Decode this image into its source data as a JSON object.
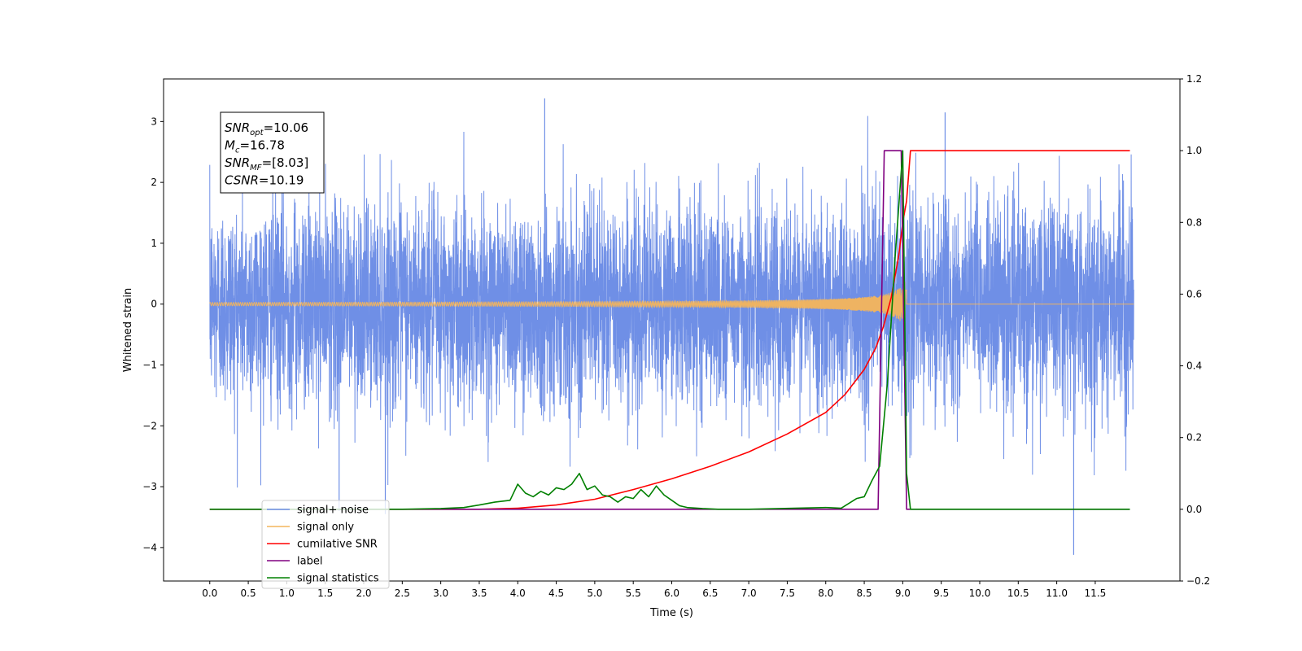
{
  "chart_data": {
    "type": "line",
    "xlabel": "Time (s)",
    "ylabel_left": "Whitened strain",
    "ylabel_right": "",
    "xlim": [
      -0.6,
      12.6
    ],
    "ylim_left": [
      -4.55,
      3.7
    ],
    "ylim_right": [
      -0.2,
      1.2
    ],
    "x_ticks": [
      0.0,
      0.5,
      1.0,
      1.5,
      2.0,
      2.5,
      3.0,
      3.5,
      4.0,
      4.5,
      5.0,
      5.5,
      6.0,
      6.5,
      7.0,
      7.5,
      8.0,
      8.5,
      9.0,
      9.5,
      10.0,
      10.5,
      11.0,
      11.5
    ],
    "x_tick_labels": [
      "0.0",
      "0.5",
      "1.0",
      "1.5",
      "2.0",
      "2.5",
      "3.0",
      "3.5",
      "4.0",
      "4.5",
      "5.0",
      "5.5",
      "6.0",
      "6.5",
      "7.0",
      "7.5",
      "8.0",
      "8.5",
      "9.0",
      "9.5",
      "10.0",
      "10.5",
      "11.0",
      "11.5"
    ],
    "y_ticks_left": [
      -4,
      -3,
      -2,
      -1,
      0,
      1,
      2,
      3
    ],
    "y_tick_labels_left": [
      "−4",
      "−3",
      "−2",
      "−1",
      "0",
      "1",
      "2",
      "3"
    ],
    "y_ticks_right": [
      -0.2,
      0.0,
      0.2,
      0.4,
      0.6,
      0.8,
      1.0,
      1.2
    ],
    "y_tick_labels_right": [
      "−0.2",
      "0.0",
      "0.2",
      "0.4",
      "0.6",
      "0.8",
      "1.0",
      "1.2"
    ],
    "grid": false,
    "legend_position": "lower-left",
    "annotation": {
      "lines": [
        {
          "base": "SNR",
          "sub": "opt",
          "value": "=10.06"
        },
        {
          "base": "M",
          "sub": "c",
          "value": "=16.78"
        },
        {
          "base": "SNR",
          "sub": "MF",
          "value": "=[8.03]"
        },
        {
          "base": "CSNR",
          "sub": "",
          "value": "=10.19"
        }
      ]
    },
    "series": [
      {
        "name": "signal+ noise",
        "axis": "left",
        "color": "#6f8fe6",
        "style": "noise",
        "x_range": [
          0.0,
          12.0
        ],
        "amplitude_typical": 1.5,
        "max_value": 3.38,
        "min_value": -4.12
      },
      {
        "name": "signal only",
        "axis": "left",
        "color": "#f4b55b",
        "style": "chirp",
        "x_range": [
          0.0,
          9.05
        ],
        "amplitude_peak": 0.5
      },
      {
        "name": "cumilative SNR",
        "axis": "right",
        "color": "#ff0000",
        "x": [
          0.0,
          3.5,
          4.0,
          4.5,
          5.0,
          5.5,
          6.0,
          6.5,
          7.0,
          7.5,
          8.0,
          8.25,
          8.5,
          8.65,
          8.75,
          8.85,
          8.95,
          9.0,
          9.05,
          9.1,
          9.5,
          10.0,
          10.5,
          11.0,
          11.5,
          11.95
        ],
        "y": [
          0.0,
          0.0,
          0.003,
          0.012,
          0.028,
          0.055,
          0.085,
          0.12,
          0.16,
          0.21,
          0.27,
          0.32,
          0.39,
          0.45,
          0.51,
          0.59,
          0.71,
          0.8,
          0.86,
          1.0,
          1.0,
          1.0,
          1.0,
          1.0,
          1.0,
          1.0
        ]
      },
      {
        "name": "label",
        "axis": "right",
        "color": "#800080",
        "x": [
          0.0,
          8.68,
          8.76,
          8.98,
          9.05,
          11.95
        ],
        "y": [
          0.0,
          0.0,
          1.0,
          1.0,
          0.0,
          0.0
        ]
      },
      {
        "name": "signal statistics",
        "axis": "right",
        "color": "#008000",
        "x": [
          0.0,
          2.5,
          3.0,
          3.3,
          3.5,
          3.7,
          3.9,
          4.0,
          4.1,
          4.2,
          4.3,
          4.4,
          4.5,
          4.6,
          4.7,
          4.8,
          4.9,
          5.0,
          5.1,
          5.2,
          5.3,
          5.4,
          5.5,
          5.6,
          5.7,
          5.8,
          5.9,
          6.0,
          6.1,
          6.2,
          6.4,
          6.6,
          7.0,
          8.0,
          8.2,
          8.4,
          8.5,
          8.6,
          8.7,
          8.8,
          8.9,
          9.0,
          9.05,
          9.1,
          11.95
        ],
        "y": [
          0.0,
          0.0,
          0.002,
          0.005,
          0.012,
          0.02,
          0.025,
          0.07,
          0.045,
          0.035,
          0.05,
          0.04,
          0.06,
          0.055,
          0.07,
          0.1,
          0.055,
          0.065,
          0.04,
          0.035,
          0.02,
          0.035,
          0.03,
          0.055,
          0.035,
          0.065,
          0.04,
          0.025,
          0.01,
          0.005,
          0.002,
          0.0,
          0.0,
          0.005,
          0.003,
          0.03,
          0.035,
          0.08,
          0.12,
          0.35,
          0.7,
          1.0,
          0.1,
          0.0,
          0.0
        ]
      }
    ],
    "legend_entries": [
      {
        "label": "signal+ noise",
        "color": "#6f8fe6"
      },
      {
        "label": "signal only",
        "color": "#f4b55b"
      },
      {
        "label": "cumilative SNR",
        "color": "#ff0000"
      },
      {
        "label": "label",
        "color": "#800080"
      },
      {
        "label": "signal statistics",
        "color": "#008000"
      }
    ]
  }
}
